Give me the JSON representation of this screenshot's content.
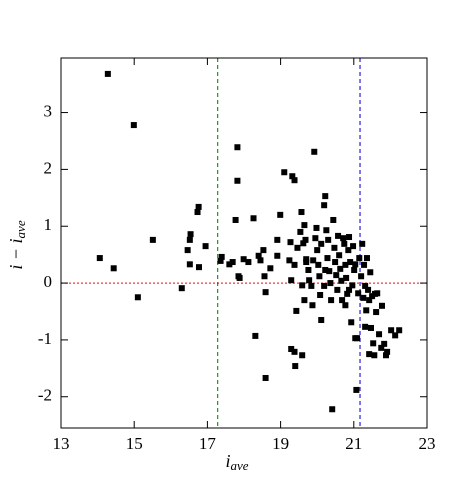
{
  "chart_data": {
    "type": "scatter",
    "xlabel": {
      "main": "i",
      "sub": "ave"
    },
    "ylabel": {
      "main": "i − i",
      "sub": "ave"
    },
    "xlim": [
      13,
      23
    ],
    "ylim": [
      -2.55,
      3.96
    ],
    "xticks": [
      13,
      15,
      17,
      19,
      21,
      23
    ],
    "yticks": [
      -2,
      -1,
      0,
      1,
      2,
      3
    ],
    "color": "#000000",
    "vlines": [
      {
        "x": 17.28,
        "color": "#1a9a1a"
      },
      {
        "x": 21.17,
        "color": "#2222dd"
      }
    ],
    "hline": {
      "y": 0,
      "color": "#ff0000"
    },
    "x": [
      14.28,
      14.99,
      14.06,
      14.44,
      15.1,
      15.51,
      16.3,
      16.46,
      16.52,
      16.54,
      16.52,
      16.77,
      16.73,
      16.76,
      16.95,
      17.39,
      17.36,
      17.6,
      17.69,
      17.82,
      17.82,
      17.77,
      17.85,
      17.88,
      17.99,
      18.26,
      18.12,
      18.31,
      18.4,
      18.45,
      18.53,
      18.56,
      18.59,
      18.59,
      18.72,
      18.91,
      18.91,
      18.99,
      19.1,
      19.24,
      19.27,
      19.29,
      19.29,
      19.32,
      19.38,
      19.38,
      19.46,
      19.54,
      19.57,
      19.62,
      19.59,
      19.65,
      19.7,
      19.38,
      19.43,
      19.65,
      19.68,
      19.4,
      19.59,
      19.7,
      19.76,
      19.78,
      19.84,
      19.87,
      19.92,
      19.95,
      19.98,
      20.0,
      20.03,
      20.06,
      20.08,
      20.11,
      20.19,
      20.19,
      20.22,
      20.25,
      20.28,
      20.3,
      20.33,
      20.36,
      20.38,
      20.41,
      20.44,
      20.47,
      20.49,
      20.52,
      20.55,
      20.57,
      20.6,
      20.63,
      20.66,
      20.68,
      20.71,
      20.74,
      20.77,
      20.79,
      20.82,
      20.85,
      20.87,
      20.9,
      20.93,
      20.96,
      20.98,
      21.01,
      21.04,
      21.07,
      21.09,
      21.12,
      21.15,
      21.2,
      21.23,
      21.26,
      21.28,
      21.31,
      21.34,
      21.36,
      21.39,
      21.42,
      21.45,
      21.47,
      21.5,
      21.53,
      21.56,
      21.58,
      21.61,
      21.64,
      21.69,
      21.75,
      21.77,
      21.83,
      21.88,
      21.91,
      22.02,
      22.13,
      22.24,
      21.42,
      21.31,
      21.04,
      20.22,
      19.89,
      20.11,
      20.77,
      20.87
    ],
    "y": [
      3.68,
      2.78,
      0.44,
      0.26,
      -0.25,
      0.76,
      -0.09,
      0.58,
      0.76,
      0.86,
      0.33,
      0.28,
      1.25,
      1.34,
      0.65,
      0.46,
      0.39,
      0.33,
      0.37,
      2.39,
      1.8,
      1.11,
      0.12,
      0.09,
      0.42,
      1.14,
      0.37,
      -0.93,
      0.48,
      0.4,
      0.58,
      0.12,
      -1.67,
      -0.16,
      0.26,
      0.76,
      0.48,
      1.2,
      1.95,
      0.4,
      0.72,
      0.05,
      -1.16,
      1.88,
      1.81,
      0.32,
      0.62,
      0.9,
      1.25,
      0.7,
      -0.04,
      -0.3,
      0.42,
      -1.21,
      -0.49,
      1.02,
      0.76,
      -1.46,
      -1.27,
      0.37,
      0.23,
      0.05,
      -0.05,
      -0.39,
      2.31,
      0.79,
      0.97,
      0.58,
      0.32,
      0.12,
      -0.21,
      -0.65,
      1.37,
      -0.05,
      1.53,
      0.93,
      0.44,
      0.76,
      0.21,
      0.0,
      -0.3,
      -2.22,
      1.11,
      0.62,
      0.37,
      0.14,
      -0.12,
      0.83,
      0.49,
      0.25,
      0.04,
      -0.3,
      0.79,
      0.69,
      0.32,
      0.09,
      -0.19,
      0.58,
      0.81,
      0.37,
      -0.69,
      -0.04,
      0.65,
      0.23,
      -0.97,
      -1.88,
      -0.97,
      -0.18,
      0.44,
      0.12,
      0.69,
      -0.26,
      0.32,
      -0.05,
      -0.48,
      0.44,
      -0.12,
      -0.3,
      0.19,
      -0.79,
      -0.23,
      -1.06,
      -1.27,
      -0.19,
      -0.51,
      -0.18,
      -0.9,
      -1.14,
      -0.4,
      -1.07,
      -1.27,
      -1.21,
      -0.83,
      -0.92,
      -0.83,
      -1.25,
      -0.77,
      0.33,
      0.23,
      0.4,
      0.69,
      -0.39,
      -0.12
    ]
  }
}
